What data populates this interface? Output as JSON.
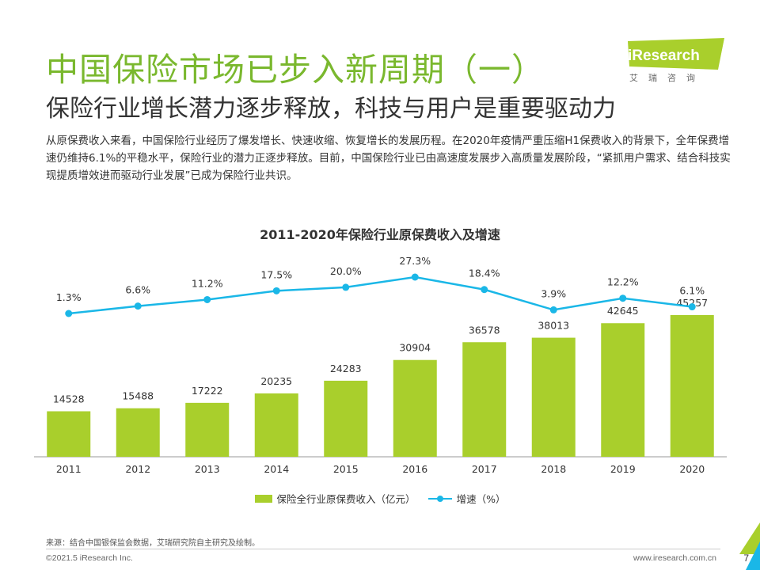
{
  "header": {
    "title": "中国保险市场已步入新周期（一）",
    "subtitle": "保险行业增长潜力逐步释放，科技与用户是重要驱动力"
  },
  "logo": {
    "brand": "iResearch",
    "sub": "艾瑞咨询"
  },
  "intro": "从原保费收入来看，中国保险行业经历了爆发增长、快速收缩、恢复增长的发展历程。在2020年疫情严重压缩H1保费收入的背景下，全年保费增速仍维持6.1%的平稳水平，保险行业的潜力正逐步释放。目前，中国保险行业已由高速度发展步入高质量发展阶段，“紧抓用户需求、结合科技实现提质增效进而驱动行业发展”已成为保险行业共识。",
  "chart_data": {
    "type": "bar",
    "title": "2011-2020年保险行业原保费收入及增速",
    "categories": [
      "2011",
      "2012",
      "2013",
      "2014",
      "2015",
      "2016",
      "2017",
      "2018",
      "2019",
      "2020"
    ],
    "series": [
      {
        "name": "保险全行业原保费收入（亿元）",
        "type": "bar",
        "values": [
          14528,
          15488,
          17222,
          20235,
          24283,
          30904,
          36578,
          38013,
          42645,
          45257
        ],
        "labels": [
          "14528",
          "15488",
          "17222",
          "20235",
          "24283",
          "30904",
          "36578",
          "38013",
          "42645",
          "45257"
        ],
        "color": "#a9cf2c"
      },
      {
        "name": "增速（%）",
        "type": "line",
        "values": [
          1.3,
          6.6,
          11.2,
          17.5,
          20.0,
          27.3,
          18.4,
          3.9,
          12.2,
          6.1
        ],
        "labels": [
          "1.3%",
          "6.6%",
          "11.2%",
          "17.5%",
          "20.0%",
          "27.3%",
          "18.4%",
          "3.9%",
          "12.2%",
          "6.1%"
        ],
        "color": "#1ab7e7"
      }
    ],
    "legend_position": "bottom",
    "grid": false
  },
  "footer": {
    "source": "来源：结合中国银保监会数据，艾瑞研究院自主研究及绘制。",
    "copyright": "©2021.5 iResearch Inc.",
    "website": "www.iresearch.com.cn",
    "page": "7"
  },
  "colors": {
    "accent": "#7ab82e",
    "bar": "#a9cf2c",
    "line": "#1ab7e7"
  }
}
